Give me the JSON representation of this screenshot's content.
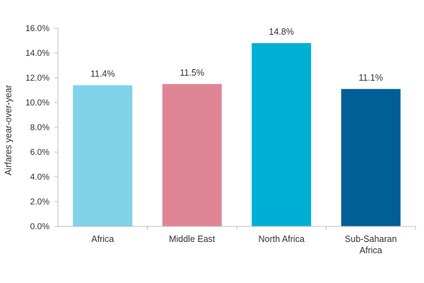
{
  "chart_data": {
    "type": "bar",
    "title": "",
    "xlabel": "",
    "ylabel": "Airfares year-over-year",
    "ylim": [
      0,
      16
    ],
    "yticks": [
      0,
      2,
      4,
      6,
      8,
      10,
      12,
      14,
      16
    ],
    "ytick_labels": [
      "0.0%",
      "2.0%",
      "4.0%",
      "6.0%",
      "8.0%",
      "10.0%",
      "12.0%",
      "14.0%",
      "16.0%"
    ],
    "grid": false,
    "legend": "none",
    "categories": [
      [
        "Africa"
      ],
      [
        "Middle East"
      ],
      [
        "North Africa"
      ],
      [
        "Sub-Saharan",
        "Africa"
      ]
    ],
    "values": [
      11.4,
      11.5,
      14.8,
      11.1
    ],
    "data_labels": [
      "11.4%",
      "11.5%",
      "14.8%",
      "11.1%"
    ],
    "colors": [
      "#7fd3e8",
      "#e08595",
      "#00afd6",
      "#005f96"
    ]
  }
}
